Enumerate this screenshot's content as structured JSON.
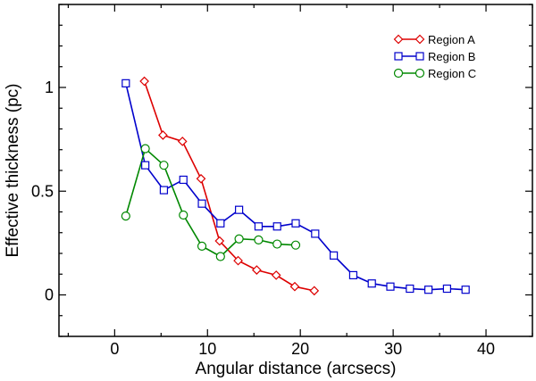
{
  "chart_data": {
    "type": "line",
    "title": "",
    "xlabel": "Angular distance (arcsecs)",
    "ylabel": "Effective thickness (pc)",
    "xlim": [
      -6,
      45
    ],
    "ylim": [
      -0.2,
      1.4
    ],
    "xticks": [
      0,
      10,
      20,
      30,
      40
    ],
    "xtick_labels": [
      "0",
      "10",
      "20",
      "30",
      "40"
    ],
    "yticks": [
      0,
      0.5,
      1
    ],
    "ytick_labels": [
      "0",
      "0.5",
      "1"
    ],
    "legend_position": "top-right",
    "series": [
      {
        "name": "Region A",
        "color": "#dd0000",
        "marker": "diamond",
        "x": [
          3.2,
          5.2,
          7.3,
          9.3,
          11.3,
          13.3,
          15.3,
          17.4,
          19.4,
          21.5
        ],
        "y": [
          1.03,
          0.77,
          0.74,
          0.56,
          0.26,
          0.165,
          0.12,
          0.095,
          0.04,
          0.02
        ]
      },
      {
        "name": "Region B",
        "color": "#0000cc",
        "marker": "square",
        "x": [
          1.2,
          3.3,
          5.3,
          7.4,
          9.4,
          11.4,
          13.4,
          15.5,
          17.5,
          19.5,
          21.6,
          23.6,
          25.7,
          27.7,
          29.7,
          31.8,
          33.8,
          35.8,
          37.8
        ],
        "y": [
          1.02,
          0.625,
          0.505,
          0.555,
          0.44,
          0.345,
          0.41,
          0.33,
          0.33,
          0.345,
          0.295,
          0.19,
          0.095,
          0.055,
          0.04,
          0.03,
          0.025,
          0.03,
          0.025
        ]
      },
      {
        "name": "Region C",
        "color": "#008800",
        "marker": "circle",
        "x": [
          1.2,
          3.3,
          5.3,
          7.4,
          9.4,
          11.4,
          13.4,
          15.5,
          17.5,
          19.5
        ],
        "y": [
          0.38,
          0.705,
          0.625,
          0.385,
          0.235,
          0.185,
          0.27,
          0.265,
          0.245,
          0.24
        ]
      }
    ]
  }
}
